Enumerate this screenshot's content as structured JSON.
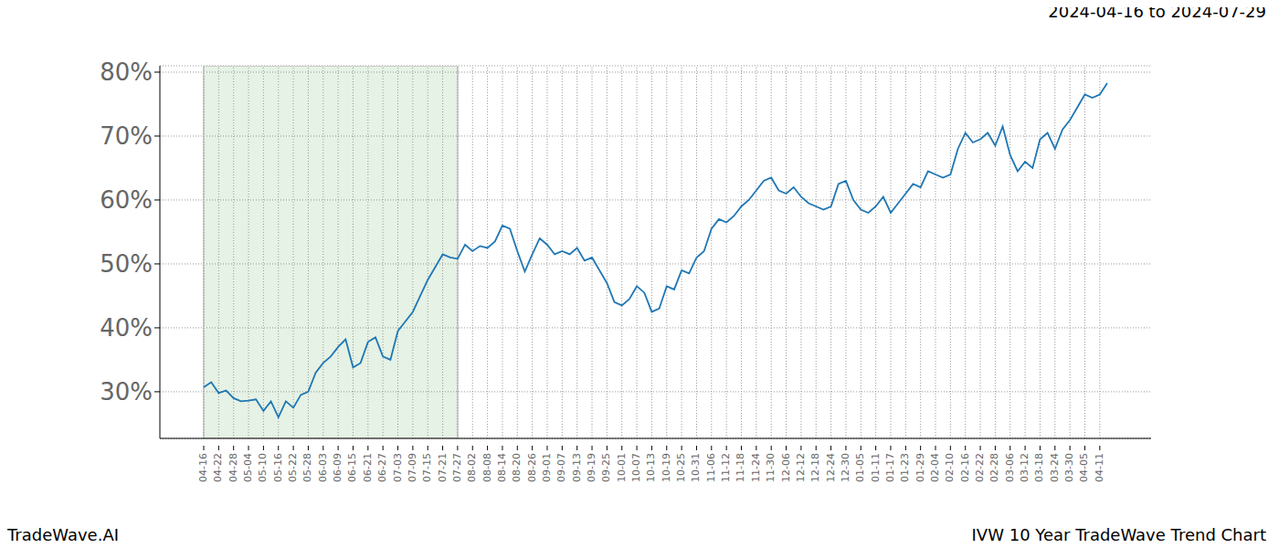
{
  "chart_data": {
    "type": "line",
    "title": "IVW 10 Year TradeWave Trend Chart",
    "subtitle": "2024-04-16 to 2024-07-29",
    "annotations": [
      "TradeWave.AI"
    ],
    "categories": [
      "04-16",
      null,
      "04-22",
      null,
      "04-28",
      null,
      "05-04",
      null,
      "05-10",
      null,
      "05-16",
      null,
      "05-22",
      null,
      "05-28",
      null,
      "06-03",
      null,
      "06-09",
      null,
      "06-15",
      null,
      "06-21",
      null,
      "06-27",
      null,
      "07-03",
      null,
      "07-09",
      null,
      "07-15",
      null,
      "07-21",
      null,
      "07-27",
      null,
      "08-02",
      null,
      "08-08",
      null,
      "08-14",
      null,
      "08-20",
      null,
      "08-26",
      null,
      "09-01",
      null,
      "09-07",
      null,
      "09-13",
      null,
      "09-19",
      null,
      "09-25",
      null,
      "10-01",
      null,
      "10-07",
      null,
      "10-13",
      null,
      "10-19",
      null,
      "10-25",
      null,
      "10-31",
      null,
      "11-06",
      null,
      "11-12",
      null,
      "11-18",
      null,
      "11-24",
      null,
      "11-30",
      null,
      "12-06",
      null,
      "12-12",
      null,
      "12-18",
      null,
      "12-24",
      null,
      "12-30",
      null,
      "01-05",
      null,
      "01-11",
      null,
      "01-17",
      null,
      "01-23",
      null,
      "01-29",
      null,
      "02-04",
      null,
      "02-10",
      null,
      "02-16",
      null,
      "02-22",
      null,
      "02-28",
      null,
      "03-06",
      null,
      "03-12",
      null,
      "03-18",
      null,
      "03-24",
      null,
      "03-30",
      null,
      "04-05",
      null,
      "04-11",
      null
    ],
    "values": [
      30.7,
      31.5,
      29.8,
      30.2,
      29.0,
      28.5,
      28.6,
      28.8,
      27.0,
      28.5,
      26.0,
      28.5,
      27.5,
      29.5,
      30.0,
      33.0,
      34.5,
      35.5,
      37.0,
      38.2,
      33.8,
      34.5,
      37.8,
      38.5,
      35.5,
      35.0,
      39.5,
      41.0,
      42.5,
      45.0,
      47.5,
      49.5,
      51.5,
      51.0,
      50.8,
      53.0,
      52.0,
      52.8,
      52.5,
      53.5,
      56.0,
      55.5,
      52.0,
      48.8,
      51.5,
      54.0,
      53.0,
      51.5,
      52.0,
      51.5,
      52.5,
      50.5,
      51.0,
      49.0,
      47.0,
      44.0,
      43.5,
      44.5,
      46.5,
      45.5,
      42.5,
      43.0,
      46.5,
      46.0,
      49.0,
      48.5,
      51.0,
      52.0,
      55.5,
      57.0,
      56.5,
      57.5,
      59.0,
      60.0,
      61.5,
      63.0,
      63.5,
      61.5,
      61.0,
      62.0,
      60.5,
      59.5,
      59.0,
      58.5,
      59.0,
      62.5,
      63.0,
      60.0,
      58.5,
      58.0,
      59.0,
      60.5,
      58.0,
      59.5,
      61.0,
      62.5,
      62.0,
      64.5,
      64.0,
      63.5,
      64.0,
      68.0,
      70.5,
      69.0,
      69.5,
      70.5,
      68.5,
      71.5,
      67.0,
      64.5,
      66.0,
      65.0,
      69.5,
      70.5,
      68.0,
      71.0,
      72.5,
      74.5,
      76.5,
      76.0,
      76.5,
      78.3
    ],
    "color": "#1f77b4",
    "ylim": [
      22.7,
      81
    ],
    "yticks": [
      {
        "value": 30,
        "label": "30%"
      },
      {
        "value": 40,
        "label": "40%"
      },
      {
        "value": 50,
        "label": "50%"
      },
      {
        "value": 60,
        "label": "60%"
      },
      {
        "value": 70,
        "label": "70%"
      },
      {
        "value": 80,
        "label": "80%"
      }
    ],
    "grid": true,
    "shaded_range": [
      "04-16",
      "07-27"
    ]
  }
}
